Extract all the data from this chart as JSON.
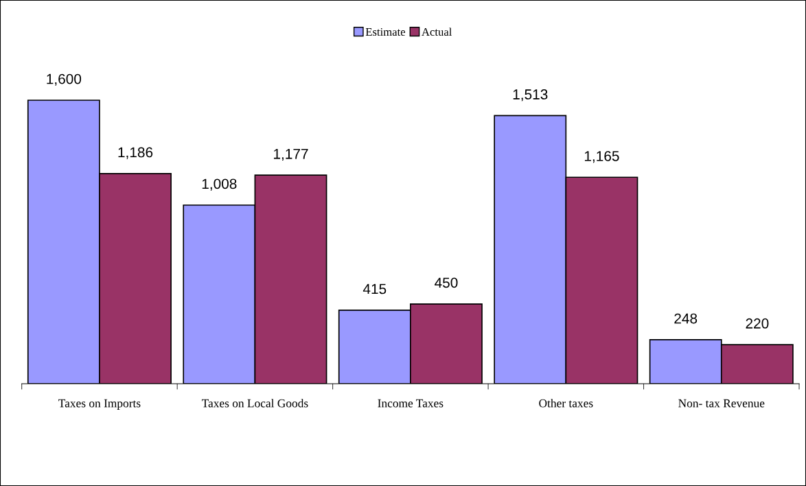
{
  "chart_data": {
    "type": "bar",
    "categories": [
      "Taxes on Imports",
      "Taxes on Local Goods",
      "Income Taxes",
      "Other taxes",
      "Non- tax Revenue"
    ],
    "series": [
      {
        "name": "Estimate",
        "color": "#9999ff",
        "values": [
          1600,
          1008,
          415,
          1513,
          248
        ],
        "value_labels": [
          "1,600",
          "1,008",
          "415",
          "1,513",
          "248"
        ]
      },
      {
        "name": "Actual",
        "color": "#993366",
        "values": [
          1186,
          1177,
          450,
          1165,
          220
        ],
        "value_labels": [
          "1,186",
          "1,177",
          "450",
          "1,165",
          "220"
        ]
      }
    ],
    "legend": "top",
    "grid": false
  }
}
